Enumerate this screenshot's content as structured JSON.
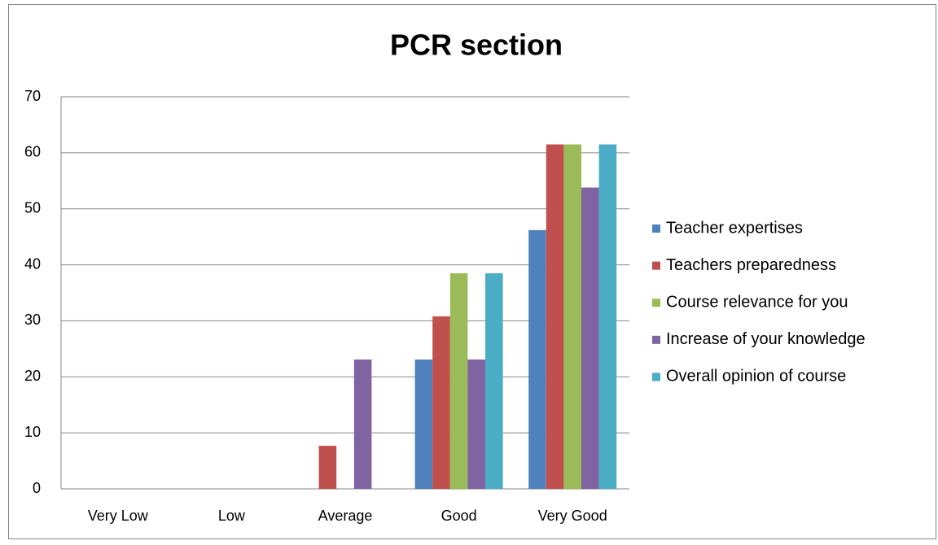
{
  "chart_data": {
    "type": "bar",
    "title": "PCR section",
    "categories": [
      "Very Low",
      "Low",
      "Average",
      "Good",
      "Very Good"
    ],
    "series": [
      {
        "name": "Teacher expertises",
        "color": "#4f81bd",
        "values": [
          0,
          0,
          0,
          23.1,
          46.2
        ]
      },
      {
        "name": "Teachers preparedness",
        "color": "#c0504d",
        "values": [
          0,
          0,
          7.7,
          30.8,
          61.5
        ]
      },
      {
        "name": "Course relevance for you",
        "color": "#9bbb59",
        "values": [
          0,
          0,
          0,
          38.5,
          61.5
        ]
      },
      {
        "name": "Increase of your knowledge",
        "color": "#8064a2",
        "values": [
          0,
          0,
          23.1,
          23.1,
          53.8
        ]
      },
      {
        "name": "Overall opinion of course",
        "color": "#4bacc6",
        "values": [
          0,
          0,
          0,
          38.5,
          61.5
        ]
      }
    ],
    "ylim": [
      0,
      70
    ],
    "yticks": [
      0,
      10,
      20,
      30,
      40,
      50,
      60,
      70
    ],
    "grid": true,
    "legend": "right"
  }
}
